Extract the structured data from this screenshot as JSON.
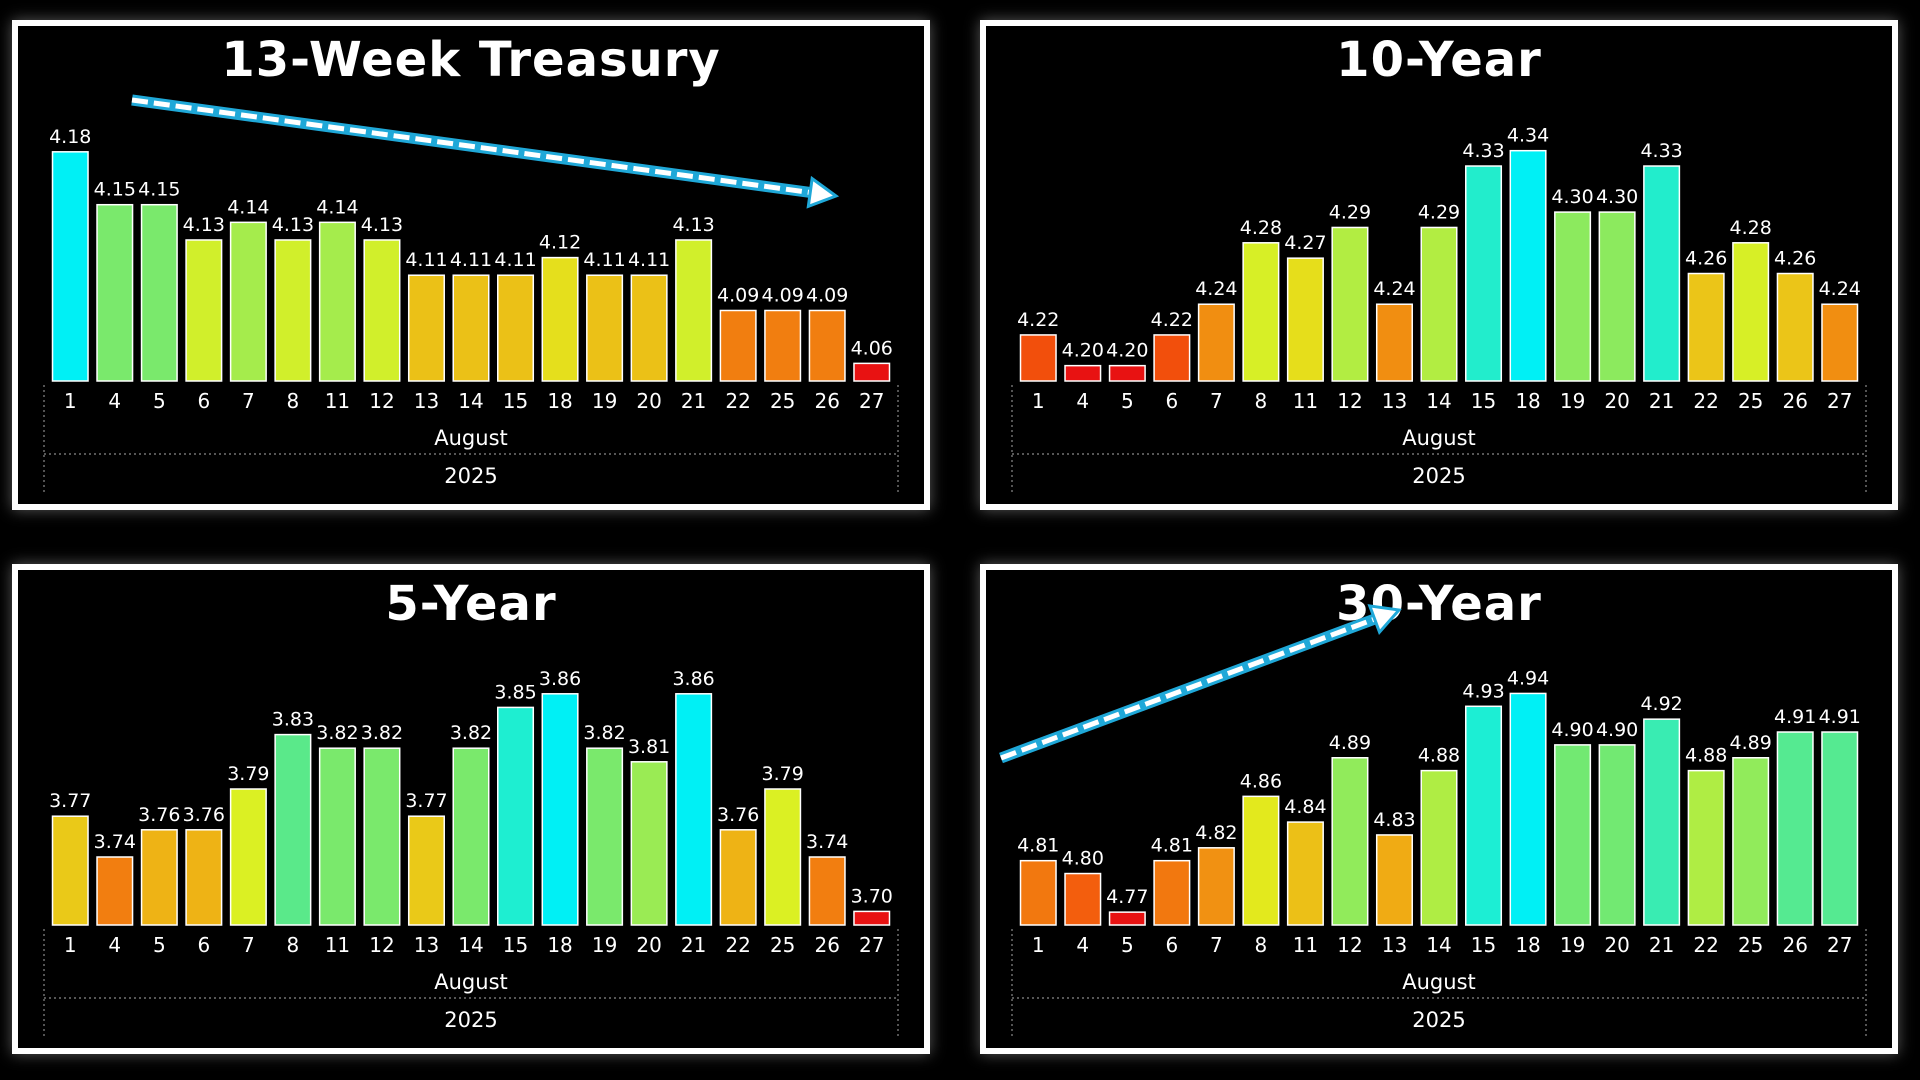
{
  "colors": {
    "background": "#000000",
    "panel_border": "#ffffff",
    "text": "#ffffff",
    "arrow": "#1fa8d8"
  },
  "chart_data": [
    {
      "type": "bar",
      "title": "13-Week Treasury",
      "categories": [
        "1",
        "4",
        "5",
        "6",
        "7",
        "8",
        "11",
        "12",
        "13",
        "14",
        "15",
        "18",
        "19",
        "20",
        "21",
        "22",
        "25",
        "26",
        "27"
      ],
      "values": [
        4.18,
        4.15,
        4.15,
        4.13,
        4.14,
        4.13,
        4.14,
        4.13,
        4.11,
        4.11,
        4.11,
        4.12,
        4.11,
        4.11,
        4.13,
        4.09,
        4.09,
        4.09,
        4.06
      ],
      "value_labels": [
        "4.18",
        "4.15",
        "4.15",
        "4.13",
        "4.14",
        "4.13",
        "4.14",
        "4.13",
        "4.11",
        "4.11",
        "4.11",
        "4.12",
        "4.11",
        "4.11",
        "4.13",
        "4.09",
        "4.09",
        "4.09",
        "4.06"
      ],
      "month_label": "August",
      "year_label": "2025",
      "trend_arrow": "down",
      "ylim": [
        4.05,
        4.185
      ]
    },
    {
      "type": "bar",
      "title": "10-Year",
      "categories": [
        "1",
        "4",
        "5",
        "6",
        "7",
        "8",
        "11",
        "12",
        "13",
        "14",
        "15",
        "18",
        "19",
        "20",
        "21",
        "22",
        "25",
        "26",
        "27"
      ],
      "values": [
        4.22,
        4.2,
        4.2,
        4.22,
        4.24,
        4.28,
        4.27,
        4.29,
        4.24,
        4.29,
        4.33,
        4.34,
        4.3,
        4.3,
        4.33,
        4.26,
        4.28,
        4.26,
        4.24
      ],
      "value_labels": [
        "4.22",
        "4.20",
        "4.20",
        "4.22",
        "4.24",
        "4.28",
        "4.27",
        "4.29",
        "4.24",
        "4.29",
        "4.33",
        "4.34",
        "4.30",
        "4.30",
        "4.33",
        "4.26",
        "4.28",
        "4.26",
        "4.24"
      ],
      "month_label": "August",
      "year_label": "2025",
      "ylim": [
        4.19,
        4.345
      ]
    },
    {
      "type": "bar",
      "title": "5-Year",
      "categories": [
        "1",
        "4",
        "5",
        "6",
        "7",
        "8",
        "11",
        "12",
        "13",
        "14",
        "15",
        "18",
        "19",
        "20",
        "21",
        "22",
        "25",
        "26",
        "27"
      ],
      "values": [
        3.77,
        3.74,
        3.76,
        3.76,
        3.79,
        3.83,
        3.82,
        3.82,
        3.77,
        3.82,
        3.85,
        3.86,
        3.82,
        3.81,
        3.86,
        3.76,
        3.79,
        3.74,
        3.7
      ],
      "value_labels": [
        "3.77",
        "3.74",
        "3.76",
        "3.76",
        "3.79",
        "3.83",
        "3.82",
        "3.82",
        "3.77",
        "3.82",
        "3.85",
        "3.86",
        "3.82",
        "3.81",
        "3.86",
        "3.76",
        "3.79",
        "3.74",
        "3.70"
      ],
      "month_label": "August",
      "year_label": "2025",
      "ylim": [
        3.69,
        3.865
      ]
    },
    {
      "type": "bar",
      "title": "30-Year",
      "categories": [
        "1",
        "4",
        "5",
        "6",
        "7",
        "8",
        "11",
        "12",
        "13",
        "14",
        "15",
        "18",
        "19",
        "20",
        "21",
        "22",
        "25",
        "26",
        "27"
      ],
      "values": [
        4.81,
        4.8,
        4.77,
        4.81,
        4.82,
        4.86,
        4.84,
        4.89,
        4.83,
        4.88,
        4.93,
        4.94,
        4.9,
        4.9,
        4.92,
        4.88,
        4.89,
        4.91,
        4.91
      ],
      "value_labels": [
        "4.81",
        "4.80",
        "4.77",
        "4.81",
        "4.82",
        "4.86",
        "4.84",
        "4.89",
        "4.83",
        "4.88",
        "4.93",
        "4.94",
        "4.90",
        "4.90",
        "4.92",
        "4.88",
        "4.89",
        "4.91",
        "4.91"
      ],
      "month_label": "August",
      "year_label": "2025",
      "trend_arrow": "up",
      "ylim": [
        4.76,
        4.945
      ]
    }
  ]
}
